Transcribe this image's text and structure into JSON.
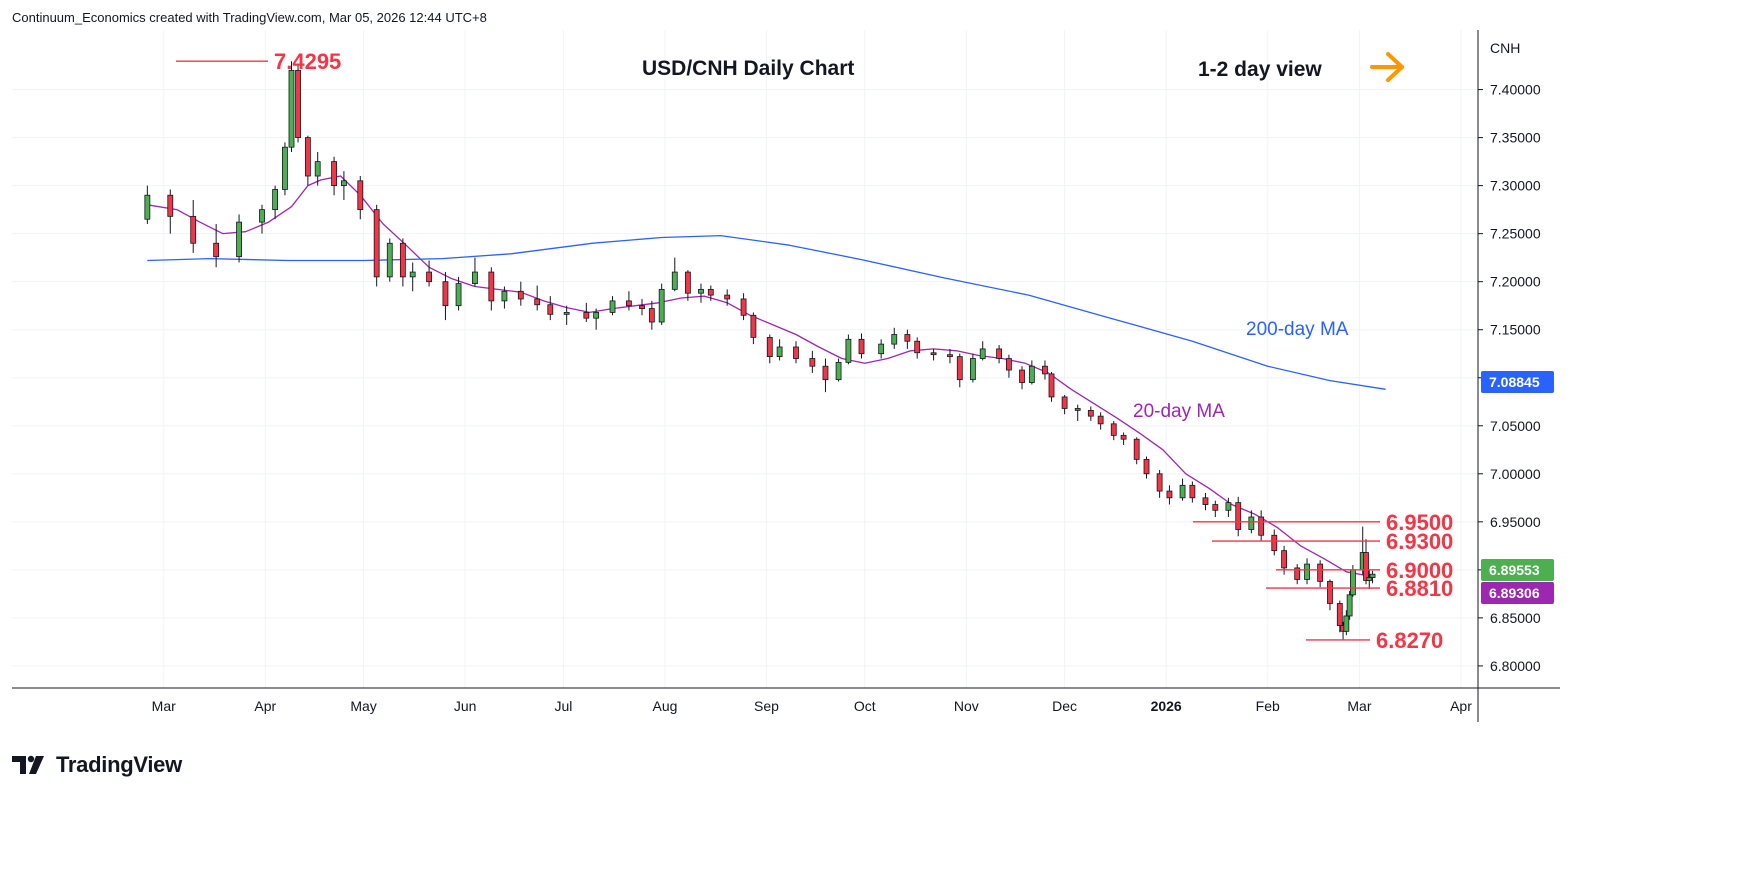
{
  "header": {
    "attribution": "Continuum_Economics created with TradingView.com, Mar 05, 2026 12:44 UTC+8"
  },
  "footer": {
    "logo_text": "TradingView",
    "logo_icon": "tradingview-logo-icon"
  },
  "colors": {
    "up_candle": "#4caf50",
    "down_candle": "#f23645",
    "candle_outline": "#131722",
    "ma20": "#9c27b0",
    "ma200": "#2962ff",
    "levels": "#f23645",
    "arrow": "#ff9800",
    "grid": "#f0f3fa"
  },
  "chart_data": {
    "type": "line",
    "title": "USD/CNH Daily Chart",
    "view_label": "1-2 day view",
    "view_icon": "arrow-right-icon",
    "symbol": "CNH",
    "x_ticks": [
      "Mar",
      "Apr",
      "May",
      "Jun",
      "Jul",
      "Aug",
      "Sep",
      "Oct",
      "Nov",
      "Dec",
      "2026",
      "Feb",
      "Mar",
      "Apr"
    ],
    "y_ticks": [
      "7.40000",
      "7.35000",
      "7.30000",
      "7.25000",
      "7.20000",
      "7.15000",
      "7.10000",
      "7.05000",
      "7.00000",
      "6.95000",
      "6.90000",
      "6.85000",
      "6.80000"
    ],
    "ylim": [
      6.777,
      7.462
    ],
    "price_badges": [
      {
        "label": "7.08845",
        "value": 7.08845,
        "color": "#2962ff"
      },
      {
        "label": "6.89553",
        "value": 6.89553,
        "color": "#4caf50"
      },
      {
        "label": "6.89306",
        "value": 6.89306,
        "color": "#9c27b0"
      }
    ],
    "levels": [
      {
        "label": "7.4295",
        "value": 7.4295,
        "date": "2025-04-09"
      },
      {
        "label": "6.9500",
        "value": 6.95,
        "date": "2026-01-23"
      },
      {
        "label": "6.9300",
        "value": 6.93,
        "date": "2026-01-19"
      },
      {
        "label": "6.9000",
        "value": 6.9,
        "date": "2026-02-11"
      },
      {
        "label": "6.8810",
        "value": 6.881,
        "date": "2026-02-09"
      },
      {
        "label": "6.8270",
        "value": 6.827,
        "date": "2026-02-24"
      }
    ],
    "series": [
      {
        "name": "20-day MA",
        "points": [
          [
            "2025-02-24",
            7.28
          ],
          [
            "2025-03-05",
            7.275
          ],
          [
            "2025-03-12",
            7.262
          ],
          [
            "2025-03-19",
            7.25
          ],
          [
            "2025-03-26",
            7.252
          ],
          [
            "2025-04-02",
            7.262
          ],
          [
            "2025-04-09",
            7.278
          ],
          [
            "2025-04-14",
            7.3
          ],
          [
            "2025-04-18",
            7.306
          ],
          [
            "2025-04-24",
            7.31
          ],
          [
            "2025-04-30",
            7.29
          ],
          [
            "2025-05-07",
            7.26
          ],
          [
            "2025-05-14",
            7.238
          ],
          [
            "2025-05-21",
            7.215
          ],
          [
            "2025-05-28",
            7.203
          ],
          [
            "2025-06-04",
            7.195
          ],
          [
            "2025-06-11",
            7.192
          ],
          [
            "2025-06-18",
            7.189
          ],
          [
            "2025-06-25",
            7.18
          ],
          [
            "2025-07-02",
            7.173
          ],
          [
            "2025-07-09",
            7.168
          ],
          [
            "2025-07-16",
            7.172
          ],
          [
            "2025-07-23",
            7.175
          ],
          [
            "2025-07-30",
            7.178
          ],
          [
            "2025-08-06",
            7.183
          ],
          [
            "2025-08-13",
            7.185
          ],
          [
            "2025-08-20",
            7.178
          ],
          [
            "2025-08-27",
            7.165
          ],
          [
            "2025-09-03",
            7.155
          ],
          [
            "2025-09-10",
            7.145
          ],
          [
            "2025-09-17",
            7.132
          ],
          [
            "2025-09-24",
            7.12
          ],
          [
            "2025-10-01",
            7.115
          ],
          [
            "2025-10-08",
            7.12
          ],
          [
            "2025-10-15",
            7.128
          ],
          [
            "2025-10-22",
            7.13
          ],
          [
            "2025-10-29",
            7.128
          ],
          [
            "2025-11-05",
            7.123
          ],
          [
            "2025-11-12",
            7.12
          ],
          [
            "2025-11-19",
            7.115
          ],
          [
            "2025-11-26",
            7.105
          ],
          [
            "2025-12-03",
            7.088
          ],
          [
            "2025-12-10",
            7.073
          ],
          [
            "2025-12-17",
            7.058
          ],
          [
            "2025-12-24",
            7.042
          ],
          [
            "2025-12-31",
            7.025
          ],
          [
            "2026-01-07",
            7.0
          ],
          [
            "2026-01-14",
            6.985
          ],
          [
            "2026-01-21",
            6.968
          ],
          [
            "2026-01-28",
            6.958
          ],
          [
            "2026-02-04",
            6.944
          ],
          [
            "2026-02-11",
            6.925
          ],
          [
            "2026-02-18",
            6.912
          ],
          [
            "2026-02-25",
            6.898
          ],
          [
            "2026-03-05",
            6.893
          ]
        ]
      },
      {
        "name": "200-day MA",
        "points": [
          [
            "2025-02-24",
            7.222
          ],
          [
            "2025-03-15",
            7.224
          ],
          [
            "2025-04-08",
            7.222
          ],
          [
            "2025-05-01",
            7.222
          ],
          [
            "2025-05-25",
            7.224
          ],
          [
            "2025-06-15",
            7.229
          ],
          [
            "2025-07-10",
            7.24
          ],
          [
            "2025-07-31",
            7.246
          ],
          [
            "2025-08-18",
            7.248
          ],
          [
            "2025-09-08",
            7.238
          ],
          [
            "2025-09-30",
            7.223
          ],
          [
            "2025-10-25",
            7.204
          ],
          [
            "2025-11-20",
            7.186
          ],
          [
            "2025-12-15",
            7.162
          ],
          [
            "2026-01-09",
            7.138
          ],
          [
            "2026-02-01",
            7.112
          ],
          [
            "2026-02-20",
            7.097
          ],
          [
            "2026-03-09",
            7.088
          ]
        ]
      }
    ],
    "candles": [
      [
        "2025-02-24",
        7.265,
        7.3,
        7.26,
        7.29
      ],
      [
        "2025-03-03",
        7.29,
        7.296,
        7.25,
        7.268
      ],
      [
        "2025-03-10",
        7.268,
        7.285,
        7.23,
        7.24
      ],
      [
        "2025-03-17",
        7.24,
        7.26,
        7.215,
        7.226
      ],
      [
        "2025-03-24",
        7.226,
        7.27,
        7.22,
        7.262
      ],
      [
        "2025-03-31",
        7.262,
        7.28,
        7.25,
        7.275
      ],
      [
        "2025-04-04",
        7.275,
        7.3,
        7.265,
        7.296
      ],
      [
        "2025-04-07",
        7.296,
        7.345,
        7.29,
        7.34
      ],
      [
        "2025-04-09",
        7.34,
        7.4295,
        7.335,
        7.42
      ],
      [
        "2025-04-11",
        7.42,
        7.425,
        7.345,
        7.35
      ],
      [
        "2025-04-14",
        7.35,
        7.352,
        7.3,
        7.31
      ],
      [
        "2025-04-17",
        7.31,
        7.335,
        7.3,
        7.325
      ],
      [
        "2025-04-22",
        7.325,
        7.33,
        7.29,
        7.3
      ],
      [
        "2025-04-25",
        7.3,
        7.315,
        7.285,
        7.305
      ],
      [
        "2025-04-30",
        7.305,
        7.31,
        7.265,
        7.275
      ],
      [
        "2025-05-05",
        7.275,
        7.28,
        7.195,
        7.205
      ],
      [
        "2025-05-09",
        7.205,
        7.245,
        7.2,
        7.24
      ],
      [
        "2025-05-13",
        7.24,
        7.245,
        7.195,
        7.205
      ],
      [
        "2025-05-16",
        7.205,
        7.22,
        7.19,
        7.21
      ],
      [
        "2025-05-21",
        7.21,
        7.222,
        7.195,
        7.2
      ],
      [
        "2025-05-26",
        7.2,
        7.21,
        7.16,
        7.175
      ],
      [
        "2025-05-30",
        7.175,
        7.205,
        7.17,
        7.198
      ],
      [
        "2025-06-04",
        7.198,
        7.225,
        7.195,
        7.21
      ],
      [
        "2025-06-09",
        7.21,
        7.215,
        7.17,
        7.18
      ],
      [
        "2025-06-13",
        7.18,
        7.195,
        7.172,
        7.19
      ],
      [
        "2025-06-18",
        7.19,
        7.2,
        7.175,
        7.182
      ],
      [
        "2025-06-23",
        7.182,
        7.196,
        7.17,
        7.176
      ],
      [
        "2025-06-27",
        7.176,
        7.185,
        7.16,
        7.166
      ],
      [
        "2025-07-02",
        7.166,
        7.175,
        7.155,
        7.168
      ],
      [
        "2025-07-08",
        7.168,
        7.178,
        7.158,
        7.162
      ],
      [
        "2025-07-11",
        7.162,
        7.172,
        7.15,
        7.168
      ],
      [
        "2025-07-16",
        7.168,
        7.185,
        7.165,
        7.18
      ],
      [
        "2025-07-21",
        7.18,
        7.19,
        7.17,
        7.175
      ],
      [
        "2025-07-25",
        7.175,
        7.182,
        7.165,
        7.172
      ],
      [
        "2025-07-28",
        7.172,
        7.18,
        7.15,
        7.158
      ],
      [
        "2025-07-31",
        7.158,
        7.198,
        7.155,
        7.192
      ],
      [
        "2025-08-04",
        7.192,
        7.225,
        7.19,
        7.21
      ],
      [
        "2025-08-08",
        7.21,
        7.212,
        7.18,
        7.188
      ],
      [
        "2025-08-12",
        7.188,
        7.198,
        7.178,
        7.192
      ],
      [
        "2025-08-15",
        7.192,
        7.196,
        7.18,
        7.186
      ],
      [
        "2025-08-20",
        7.186,
        7.192,
        7.175,
        7.182
      ],
      [
        "2025-08-25",
        7.182,
        7.188,
        7.16,
        7.165
      ],
      [
        "2025-08-28",
        7.165,
        7.168,
        7.135,
        7.142
      ],
      [
        "2025-09-02",
        7.142,
        7.145,
        7.115,
        7.122
      ],
      [
        "2025-09-05",
        7.122,
        7.14,
        7.118,
        7.132
      ],
      [
        "2025-09-10",
        7.132,
        7.138,
        7.115,
        7.12
      ],
      [
        "2025-09-15",
        7.12,
        7.128,
        7.105,
        7.112
      ],
      [
        "2025-09-19",
        7.112,
        7.12,
        7.085,
        7.098
      ],
      [
        "2025-09-23",
        7.098,
        7.12,
        7.096,
        7.116
      ],
      [
        "2025-09-26",
        7.116,
        7.145,
        7.114,
        7.14
      ],
      [
        "2025-09-30",
        7.14,
        7.146,
        7.12,
        7.125
      ],
      [
        "2025-10-06",
        7.125,
        7.14,
        7.12,
        7.135
      ],
      [
        "2025-10-10",
        7.135,
        7.152,
        7.13,
        7.145
      ],
      [
        "2025-10-14",
        7.145,
        7.15,
        7.13,
        7.138
      ],
      [
        "2025-10-17",
        7.138,
        7.142,
        7.12,
        7.126
      ],
      [
        "2025-10-22",
        7.126,
        7.13,
        7.118,
        7.124
      ],
      [
        "2025-10-27",
        7.124,
        7.13,
        7.115,
        7.122
      ],
      [
        "2025-10-30",
        7.122,
        7.125,
        7.09,
        7.098
      ],
      [
        "2025-11-03",
        7.098,
        7.125,
        7.095,
        7.12
      ],
      [
        "2025-11-06",
        7.12,
        7.138,
        7.118,
        7.13
      ],
      [
        "2025-11-11",
        7.13,
        7.134,
        7.115,
        7.12
      ],
      [
        "2025-11-14",
        7.12,
        7.124,
        7.1,
        7.108
      ],
      [
        "2025-11-18",
        7.108,
        7.112,
        7.088,
        7.095
      ],
      [
        "2025-11-21",
        7.095,
        7.118,
        7.093,
        7.112
      ],
      [
        "2025-11-25",
        7.112,
        7.118,
        7.098,
        7.104
      ],
      [
        "2025-11-27",
        7.104,
        7.106,
        7.075,
        7.08
      ],
      [
        "2025-12-01",
        7.08,
        7.082,
        7.062,
        7.068
      ],
      [
        "2025-12-05",
        7.068,
        7.072,
        7.055,
        7.066
      ],
      [
        "2025-12-09",
        7.066,
        7.07,
        7.055,
        7.06
      ],
      [
        "2025-12-12",
        7.06,
        7.064,
        7.046,
        7.052
      ],
      [
        "2025-12-16",
        7.052,
        7.055,
        7.035,
        7.04
      ],
      [
        "2025-12-19",
        7.04,
        7.043,
        7.03,
        7.036
      ],
      [
        "2025-12-23",
        7.036,
        7.038,
        7.01,
        7.015
      ],
      [
        "2025-12-26",
        7.015,
        7.018,
        6.995,
        7.0
      ],
      [
        "2025-12-30",
        7.0,
        7.004,
        6.975,
        6.982
      ],
      [
        "2026-01-02",
        6.982,
        6.988,
        6.968,
        6.975
      ],
      [
        "2026-01-06",
        6.975,
        6.995,
        6.972,
        6.988
      ],
      [
        "2026-01-09",
        6.988,
        6.992,
        6.97,
        6.975
      ],
      [
        "2026-01-13",
        6.975,
        6.98,
        6.962,
        6.968
      ],
      [
        "2026-01-16",
        6.968,
        6.972,
        6.955,
        6.962
      ],
      [
        "2026-01-20",
        6.962,
        6.975,
        6.955,
        6.97
      ],
      [
        "2026-01-23",
        6.97,
        6.976,
        6.935,
        6.942
      ],
      [
        "2026-01-27",
        6.942,
        6.962,
        6.938,
        6.955
      ],
      [
        "2026-01-30",
        6.955,
        6.962,
        6.93,
        6.936
      ],
      [
        "2026-02-03",
        6.936,
        6.942,
        6.915,
        6.92
      ],
      [
        "2026-02-06",
        6.92,
        6.925,
        6.895,
        6.902
      ],
      [
        "2026-02-10",
        6.902,
        6.906,
        6.885,
        6.89
      ],
      [
        "2026-02-13",
        6.89,
        6.912,
        6.885,
        6.906
      ],
      [
        "2026-02-17",
        6.906,
        6.91,
        6.882,
        6.888
      ],
      [
        "2026-02-20",
        6.888,
        6.89,
        6.858,
        6.865
      ],
      [
        "2026-02-23",
        6.865,
        6.868,
        6.835,
        6.842
      ],
      [
        "2026-02-24",
        6.842,
        6.846,
        6.827,
        6.836
      ],
      [
        "2026-02-25",
        6.836,
        6.858,
        6.832,
        6.852
      ],
      [
        "2026-02-26",
        6.852,
        6.878,
        6.848,
        6.874
      ],
      [
        "2026-02-27",
        6.874,
        6.905,
        6.872,
        6.9
      ],
      [
        "2026-03-02",
        6.9,
        6.945,
        6.895,
        6.918
      ],
      [
        "2026-03-03",
        6.918,
        6.932,
        6.885,
        6.889
      ],
      [
        "2026-03-04",
        6.889,
        6.9,
        6.88,
        6.892
      ],
      [
        "2026-03-05",
        6.892,
        6.899,
        6.886,
        6.8955
      ]
    ]
  }
}
